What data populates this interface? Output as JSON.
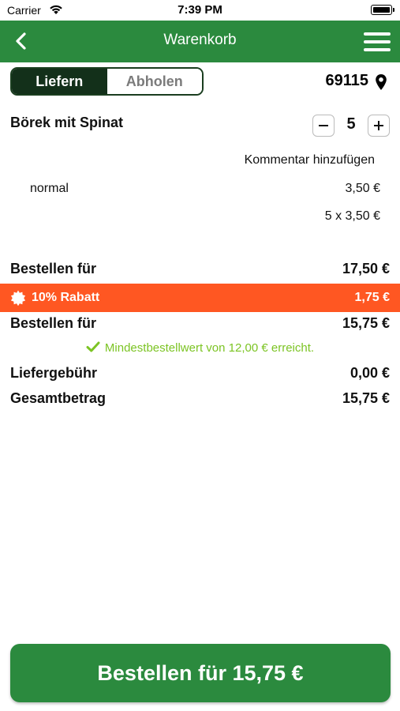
{
  "status_bar": {
    "carrier": "Carrier",
    "time": "7:39 PM"
  },
  "header": {
    "title": "Warenkorb",
    "back_icon": "chevron-left-icon",
    "menu_icon": "hamburger-menu-icon"
  },
  "mode": {
    "options": [
      "Liefern",
      "Abholen"
    ],
    "selected": "Liefern"
  },
  "location": {
    "postcode": "69115",
    "icon": "map-pin-icon"
  },
  "cart": {
    "items": [
      {
        "name": "Börek mit Spinat",
        "quantity": "5",
        "comment_link": "Kommentar hinzufügen",
        "variant": "normal",
        "unit_price": "3,50 €",
        "line_total": "5 x 3,50 €"
      }
    ]
  },
  "summary": {
    "subtotal_label": "Bestellen für",
    "subtotal_value": "17,50 €",
    "discount_label": "10% Rabatt",
    "discount_value": "1,75 €",
    "after_discount_label": "Bestellen für",
    "after_discount_value": "15,75 €",
    "min_order_note": "Mindestbestellwert von 12,00 € erreicht.",
    "delivery_fee_label": "Liefergebühr",
    "delivery_fee_value": "0,00 €",
    "total_label": "Gesamtbetrag",
    "total_value": "15,75 €"
  },
  "order_button": {
    "label": "Bestellen für 15,75 €"
  },
  "colors": {
    "primary": "#2b8a3e",
    "discount": "#ff5722",
    "success": "#7cc424",
    "segment_active": "#13301a"
  }
}
